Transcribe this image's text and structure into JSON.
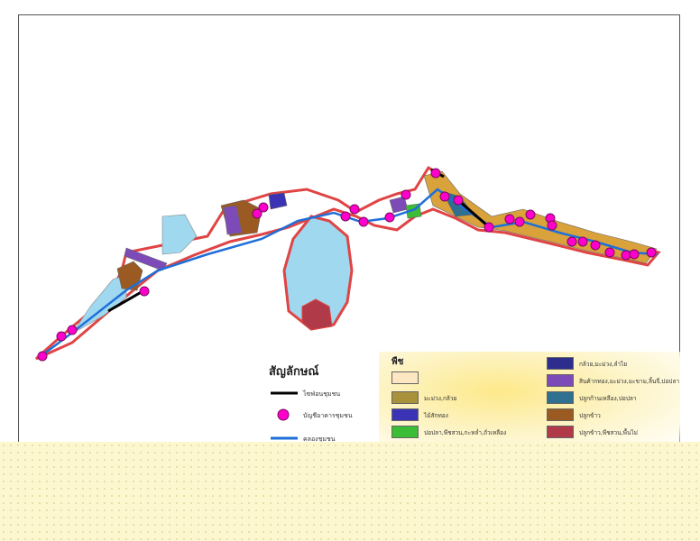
{
  "legend": {
    "title": "สัญลักษณ์",
    "line_items": [
      {
        "label": "ไซฟ่อนชุมชน",
        "symbol": "black-line",
        "color": "#000000"
      },
      {
        "label": "บัญชีอาคารชุมชน",
        "symbol": "magenta-circle",
        "color": "#ff00cc"
      },
      {
        "label": "คลองชุมชน",
        "symbol": "blue-line",
        "color": "#1e6fd9"
      }
    ],
    "crop_heading": "พืช",
    "crops": [
      {
        "label": "",
        "color": "#fde6c2"
      },
      {
        "label": "มะม่วง,กล้วย",
        "color": "#a8913a"
      },
      {
        "label": "ไม้สักทอง",
        "color": "#3a33b5"
      },
      {
        "label": "ปอปลา,พืชสวน,กะหล่ำ,ถั่วเหลือง",
        "color": "#3bbd35"
      },
      {
        "label": "",
        "color": "#39b7a0"
      },
      {
        "label": "กล้วย,มะม่วง,ลำไย",
        "color": "#2c2d8c"
      },
      {
        "label": "สินค้ากทอง,มะม่วง,มะขาม,ลิ้นจี่,ปอปลา",
        "color": "#7c4bb8"
      },
      {
        "label": "ปลูกก้านเหลือง,ปอปลา",
        "color": "#2f6f8f"
      },
      {
        "label": "ปลูกข้าว",
        "color": "#9a5a22"
      },
      {
        "label": "ปลูกข้าว,พืชสวน,พื้นไม่",
        "color": "#b03a48"
      }
    ]
  },
  "colors": {
    "boundary": "#e04444",
    "water": "#9fd8ef",
    "canal": "#1e6fd9",
    "point": "#ff00cc",
    "orchard": "#d9a23a"
  }
}
